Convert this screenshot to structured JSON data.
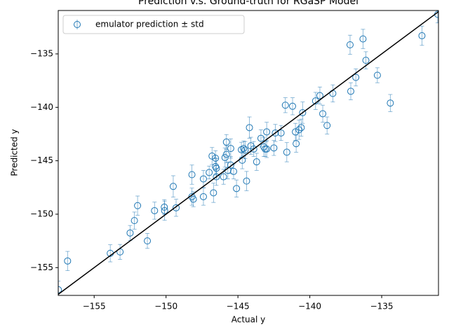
{
  "chart_data": {
    "type": "scatter",
    "title": "Prediction v.s. Ground-truth for RGaSP Model",
    "xlabel": "Actual y",
    "ylabel": "Predicted y",
    "xlim": [
      -157.5,
      -131.05
    ],
    "ylim": [
      -157.6,
      -130.94
    ],
    "xticks": [
      {
        "value": -155,
        "label": "−155"
      },
      {
        "value": -150,
        "label": "−150"
      },
      {
        "value": -145,
        "label": "−145"
      },
      {
        "value": -140,
        "label": "−140"
      },
      {
        "value": -135,
        "label": "−135"
      }
    ],
    "yticks": [
      {
        "value": -155,
        "label": "−155"
      },
      {
        "value": -150,
        "label": "−150"
      },
      {
        "value": -145,
        "label": "−145"
      },
      {
        "value": -140,
        "label": "−140"
      },
      {
        "value": -135,
        "label": "−135"
      }
    ],
    "legend": "upper left",
    "identity_line": true,
    "identity_line_color": "#000000",
    "series": [
      {
        "name": "emulator prediction ± std",
        "color": "#1f77b4",
        "x": [
          -157.49,
          -156.85,
          -153.88,
          -153.2,
          -152.5,
          -152.2,
          -151.98,
          -151.3,
          -150.8,
          -150.12,
          -150.1,
          -149.5,
          -149.3,
          -148.2,
          -148.2,
          -148.1,
          -147.4,
          -147.4,
          -147.0,
          -146.8,
          -146.7,
          -146.56,
          -146.56,
          -146.5,
          -146.5,
          -146.0,
          -145.9,
          -145.8,
          -145.8,
          -145.7,
          -145.5,
          -145.5,
          -145.3,
          -145.1,
          -144.76,
          -144.7,
          -144.6,
          -144.5,
          -144.4,
          -144.2,
          -144.1,
          -143.9,
          -143.7,
          -143.4,
          -143.2,
          -143.1,
          -143.0,
          -143.0,
          -142.5,
          -142.4,
          -142.0,
          -141.7,
          -141.6,
          -141.2,
          -141.0,
          -140.95,
          -140.75,
          -140.6,
          -140.5,
          -139.6,
          -139.3,
          -139.1,
          -138.8,
          -138.4,
          -137.2,
          -137.15,
          -136.8,
          -136.3,
          -136.1,
          -135.3,
          -134.4,
          -132.2,
          -131.1
        ],
        "y": [
          -157.07,
          -154.38,
          -153.66,
          -153.53,
          -151.76,
          -150.6,
          -149.2,
          -152.5,
          -149.67,
          -149.34,
          -149.67,
          -147.4,
          -149.4,
          -146.3,
          -148.36,
          -148.6,
          -146.7,
          -148.36,
          -146.1,
          -144.56,
          -148.0,
          -144.76,
          -145.54,
          -145.7,
          -146.5,
          -146.5,
          -144.7,
          -144.4,
          -143.25,
          -145.9,
          -143.85,
          -145.4,
          -146.0,
          -147.6,
          -143.97,
          -144.95,
          -143.85,
          -144.0,
          -146.9,
          -141.9,
          -143.6,
          -143.9,
          -145.1,
          -142.9,
          -143.7,
          -143.9,
          -142.3,
          -143.9,
          -143.8,
          -142.4,
          -142.4,
          -139.8,
          -144.2,
          -139.9,
          -142.3,
          -143.4,
          -142.1,
          -141.9,
          -140.5,
          -139.4,
          -138.9,
          -140.6,
          -141.7,
          -138.7,
          -134.15,
          -138.5,
          -137.2,
          -133.6,
          -135.6,
          -137.0,
          -139.6,
          -133.3,
          -131.3
        ],
        "errors": [
          0.8,
          0.9,
          0.8,
          0.7,
          0.7,
          0.8,
          0.9,
          0.7,
          0.8,
          0.7,
          0.9,
          1.0,
          0.8,
          0.9,
          0.8,
          0.7,
          0.8,
          0.8,
          0.6,
          0.8,
          0.9,
          0.7,
          0.8,
          0.9,
          0.8,
          0.7,
          0.9,
          0.8,
          0.7,
          0.8,
          0.9,
          0.8,
          0.7,
          0.8,
          0.7,
          0.8,
          0.7,
          0.8,
          0.9,
          1.0,
          0.8,
          0.7,
          0.8,
          0.8,
          0.9,
          0.7,
          0.9,
          0.8,
          0.7,
          0.8,
          0.7,
          0.7,
          0.9,
          0.8,
          0.8,
          0.8,
          0.9,
          0.8,
          1.0,
          0.8,
          0.8,
          0.8,
          0.8,
          0.8,
          0.9,
          0.8,
          0.8,
          0.9,
          0.8,
          0.7,
          0.8,
          0.9,
          0.8
        ]
      }
    ]
  }
}
